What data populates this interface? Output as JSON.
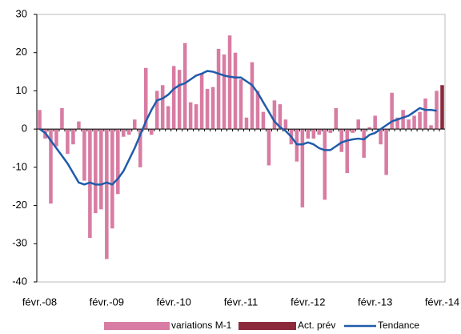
{
  "chart_data": {
    "type": "bar",
    "categories": [
      "févr.-08",
      null,
      null,
      null,
      null,
      null,
      null,
      null,
      null,
      null,
      null,
      null,
      "févr.-09",
      null,
      null,
      null,
      null,
      null,
      null,
      null,
      null,
      null,
      null,
      null,
      "févr.-10",
      null,
      null,
      null,
      null,
      null,
      null,
      null,
      null,
      null,
      null,
      null,
      "févr.-11",
      null,
      null,
      null,
      null,
      null,
      null,
      null,
      null,
      null,
      null,
      null,
      "févr.-12",
      null,
      null,
      null,
      null,
      null,
      null,
      null,
      null,
      null,
      null,
      null,
      "févr.-13",
      null,
      null,
      null,
      null,
      null,
      null,
      null,
      null,
      null,
      null,
      null,
      "févr.-14"
    ],
    "series": [
      {
        "name": "variations M-1",
        "color": "#d87ca3",
        "values": [
          5,
          -2.5,
          -19.5,
          -4.5,
          5.5,
          -6.5,
          -4,
          2,
          -13.5,
          -28.5,
          -22,
          -21,
          -34,
          -26,
          -17,
          -2,
          -1.5,
          2.5,
          -10,
          16,
          -1.5,
          10,
          11.5,
          6,
          16.5,
          15.5,
          22.5,
          7,
          6.5,
          14.5,
          10.5,
          11,
          21,
          19.5,
          24.5,
          20,
          13,
          3,
          17.5,
          10,
          4.5,
          -9.5,
          7.5,
          6.5,
          2.5,
          -4,
          -8.5,
          -20.5,
          -2.5,
          -2.5,
          -1.5,
          -18.5,
          -1,
          5.5,
          -6,
          -11.5,
          -1,
          2.5,
          -7.5,
          0.5,
          3.5,
          -4,
          -12,
          9.5,
          3,
          5,
          2.5,
          3.5,
          4.5,
          8,
          1,
          10,
          null
        ]
      },
      {
        "name": "Act. prév",
        "color": "#8c2a3c",
        "values": [
          null,
          null,
          null,
          null,
          null,
          null,
          null,
          null,
          null,
          null,
          null,
          null,
          null,
          null,
          null,
          null,
          null,
          null,
          null,
          null,
          null,
          null,
          null,
          null,
          null,
          null,
          null,
          null,
          null,
          null,
          null,
          null,
          null,
          null,
          null,
          null,
          null,
          null,
          null,
          null,
          null,
          null,
          null,
          null,
          null,
          null,
          null,
          null,
          null,
          null,
          null,
          null,
          null,
          null,
          null,
          null,
          null,
          null,
          null,
          null,
          null,
          null,
          null,
          null,
          null,
          null,
          null,
          null,
          null,
          null,
          null,
          null,
          11.5
        ]
      },
      {
        "name": "Tendance",
        "type": "line",
        "color": "#1f5caa",
        "values": [
          0,
          -1,
          -3,
          -5,
          -7,
          -9,
          -11.5,
          -14,
          -14.5,
          -14,
          -14.5,
          -14.5,
          -14,
          -14.5,
          -13,
          -11,
          -8,
          -5,
          -1.5,
          2,
          5,
          7.5,
          8,
          9,
          10.5,
          11.5,
          12,
          13,
          14,
          14.5,
          15.2,
          15,
          14.5,
          14,
          13.7,
          13.5,
          13.5,
          12.5,
          11.5,
          9.5,
          7,
          4.5,
          2,
          0.5,
          -0.5,
          -2,
          -4,
          -4,
          -3.5,
          -4,
          -5,
          -5.5,
          -5.5,
          -4.5,
          -3.5,
          -3,
          -2.7,
          -2.5,
          -2.7,
          -1.5,
          -1,
          0,
          1,
          2,
          2.5,
          3,
          3.5,
          4.5,
          5.5,
          5,
          5,
          4.8,
          null
        ]
      }
    ],
    "ylim": [
      -40,
      30
    ],
    "yticks": [
      -40,
      -30,
      -20,
      -10,
      0,
      10,
      20,
      30
    ],
    "grid": false,
    "legend": "bottom"
  }
}
